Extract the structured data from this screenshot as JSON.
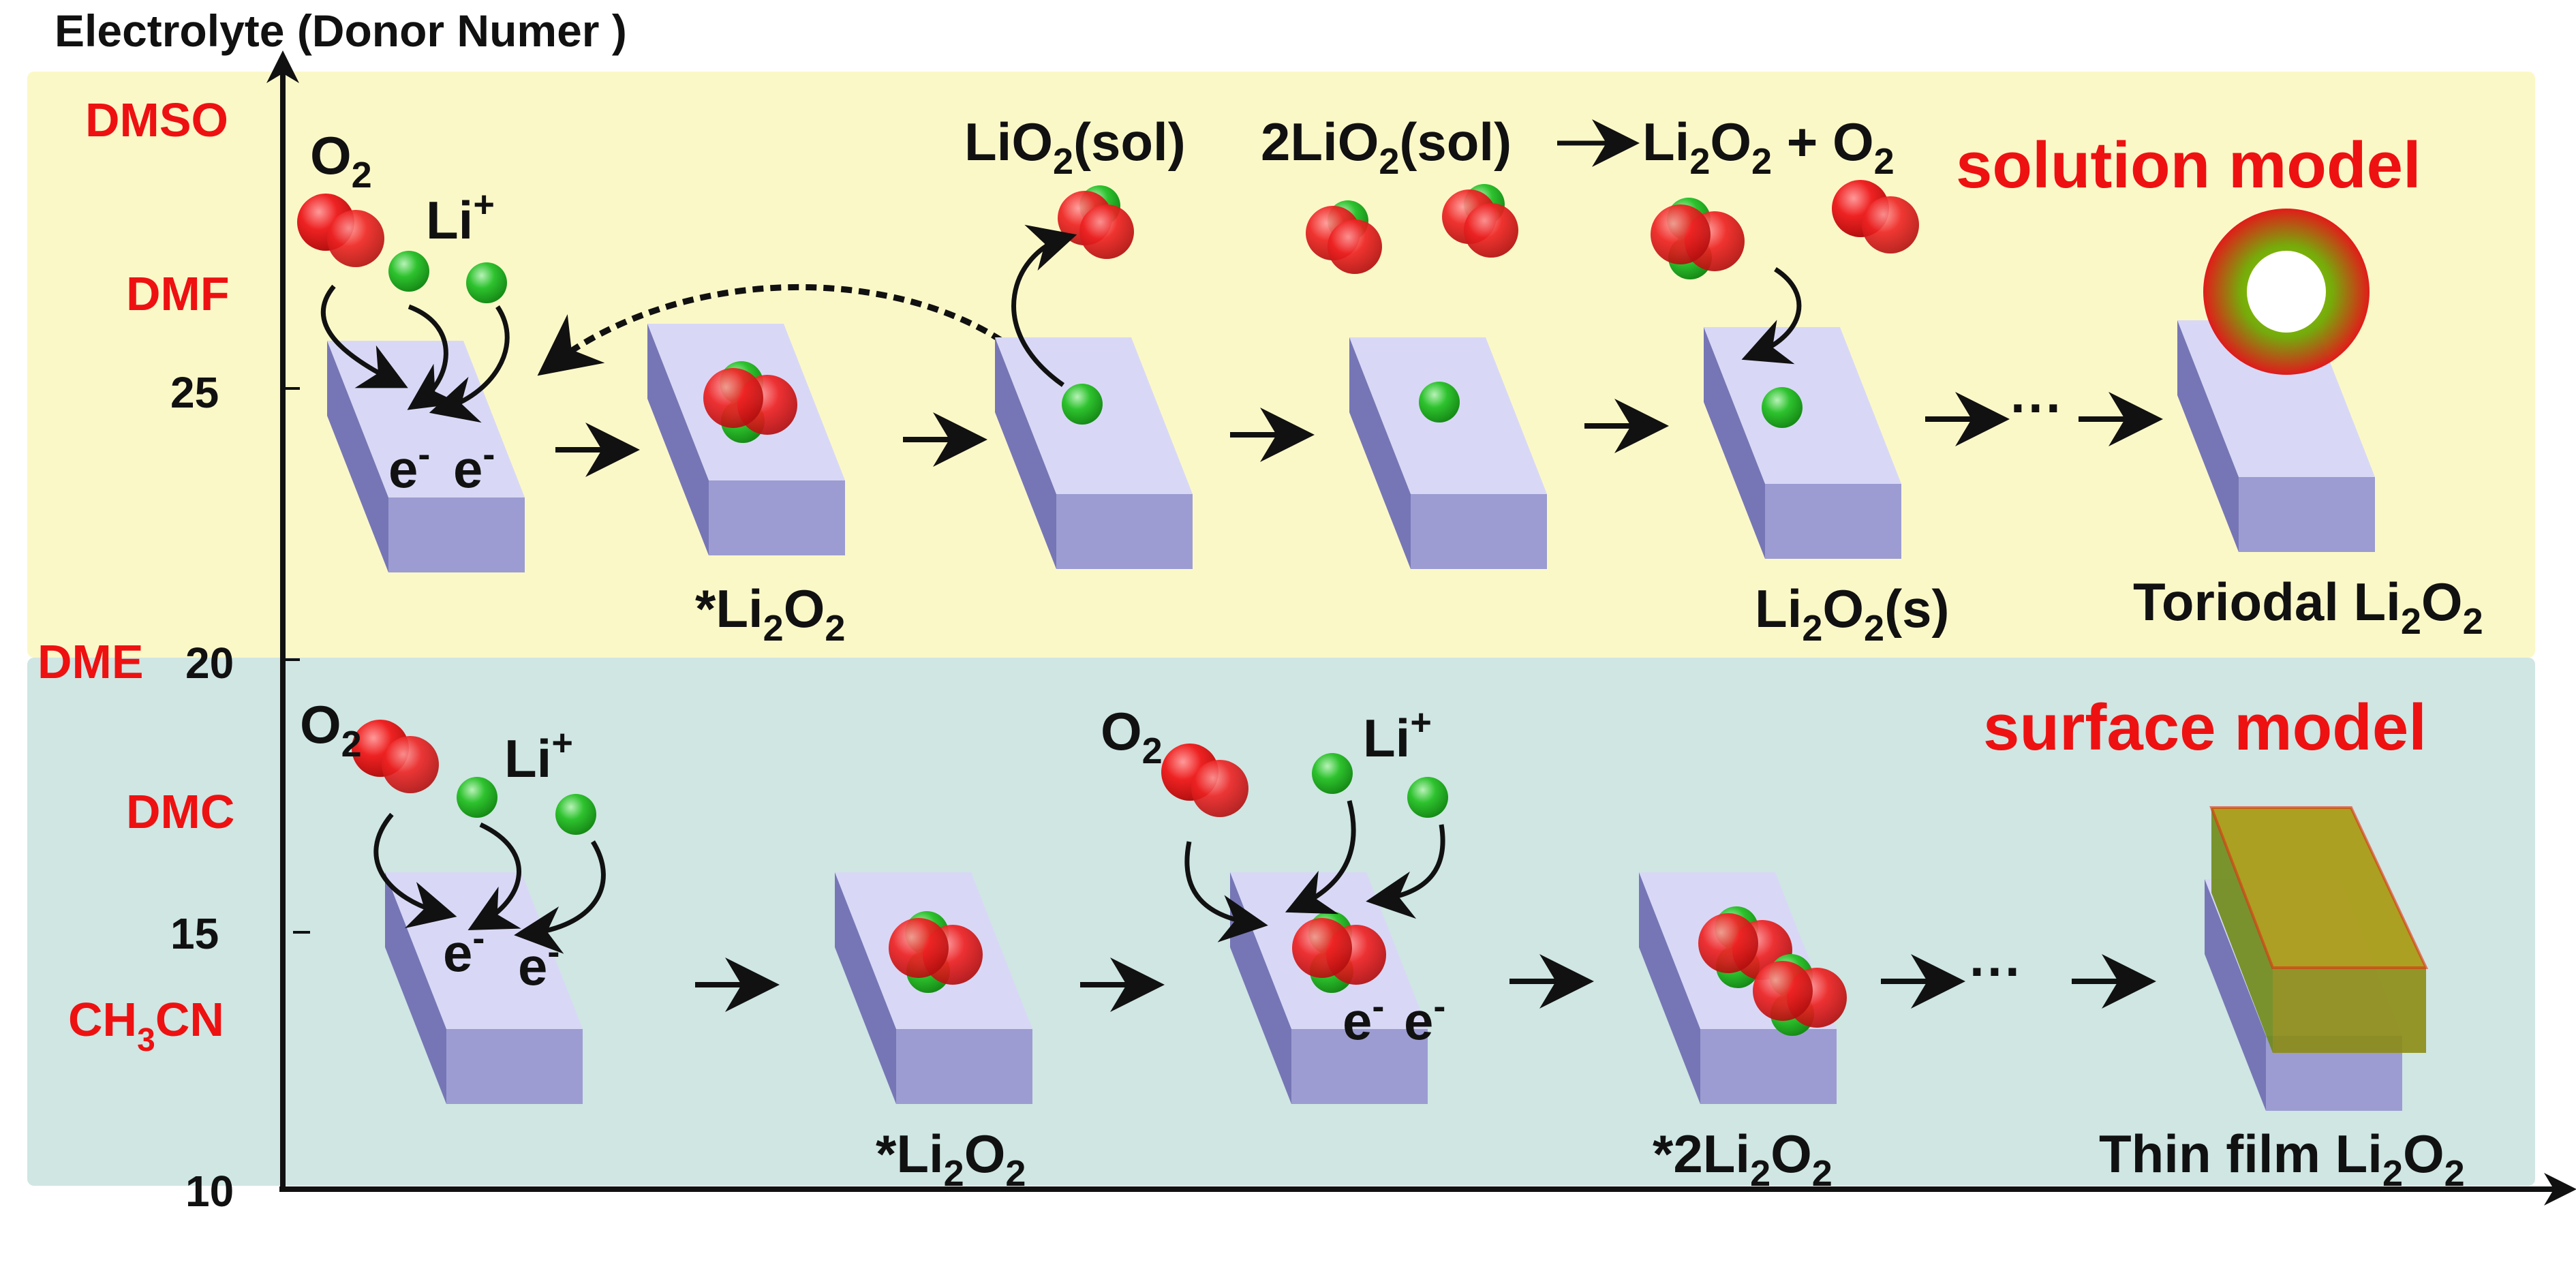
{
  "axis": {
    "y_title": "Electrolyte (Donor Numer )",
    "ticks": [
      "25",
      "20",
      "15",
      "10"
    ]
  },
  "solvents": [
    "DMSO",
    "DMF",
    "DME",
    "DMC",
    "CH",
    "3",
    "CN"
  ],
  "solution_model": {
    "title": "solution model",
    "o2": "O",
    "o2_sub": "2",
    "li": "Li",
    "li_sup": "+",
    "electron": "e",
    "electron_sup": "-",
    "star_li2o2": [
      "*Li",
      "2",
      "O",
      "2"
    ],
    "lio2_sol": [
      "LiO",
      "2",
      "(sol)"
    ],
    "reaction": [
      "2LiO",
      "2",
      "(sol)",
      "Li",
      "2",
      "O",
      "2",
      " + O",
      "2"
    ],
    "li2o2_s": [
      "Li",
      "2",
      "O",
      "2",
      "(s)"
    ],
    "toroidal": [
      "Toriodal Li",
      "2",
      "O",
      "2"
    ],
    "ellipsis": "···"
  },
  "surface_model": {
    "title": "surface model",
    "star_li2o2": [
      "*Li",
      "2",
      "O",
      "2"
    ],
    "star_2li2o2": [
      "*2Li",
      "2",
      "O",
      "2"
    ],
    "thin_film": [
      "Thin film Li",
      "2",
      "O",
      "2"
    ],
    "ellipsis": "···"
  },
  "colors": {
    "solution_band": "#fbf8c8",
    "surface_band": "#cfe6e3",
    "oxygen": "#ee2222",
    "lithium": "#22bb22",
    "electrode_top": "#d8d8f6",
    "electrode_front": "#9c9cd2",
    "electrode_side": "#7676b6",
    "label_red": "#ee1111"
  },
  "icons": [
    "oxygen-molecule-icon",
    "lithium-ion-icon",
    "electrode-block-icon",
    "arrow-icon",
    "toroid-icon",
    "thin-film-icon"
  ]
}
